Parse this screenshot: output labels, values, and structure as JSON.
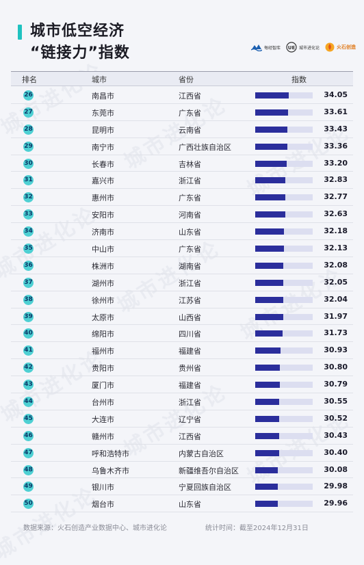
{
  "title": {
    "line1": "城市低空经济",
    "line2": "“链接力”指数"
  },
  "logos": [
    {
      "name": "wave-logo",
      "text": "每经智库"
    },
    {
      "name": "ue-logo",
      "text": "城市进化论"
    },
    {
      "name": "fire-logo",
      "text": "火石创造"
    }
  ],
  "watermark": "城市进化论",
  "header": {
    "rank": "排名",
    "city": "城市",
    "province": "省份",
    "index": "指数"
  },
  "colors": {
    "accent": "#1fc2c0",
    "bar": "#2b2e9c",
    "bar_track": "#dcdef0",
    "rank_badge": "#4ed0d3"
  },
  "chart_data": {
    "type": "table",
    "value_max": 34.05,
    "rows": [
      {
        "rank": "26",
        "city": "南昌市",
        "province": "江西省",
        "value": 34.05
      },
      {
        "rank": "27",
        "city": "东莞市",
        "province": "广东省",
        "value": 33.61
      },
      {
        "rank": "28",
        "city": "昆明市",
        "province": "云南省",
        "value": 33.43
      },
      {
        "rank": "29",
        "city": "南宁市",
        "province": "广西壮族自治区",
        "value": 33.36
      },
      {
        "rank": "30",
        "city": "长春市",
        "province": "吉林省",
        "value": 33.2
      },
      {
        "rank": "31",
        "city": "嘉兴市",
        "province": "浙江省",
        "value": 32.83
      },
      {
        "rank": "32",
        "city": "惠州市",
        "province": "广东省",
        "value": 32.77
      },
      {
        "rank": "33",
        "city": "安阳市",
        "province": "河南省",
        "value": 32.63
      },
      {
        "rank": "34",
        "city": "济南市",
        "province": "山东省",
        "value": 32.18
      },
      {
        "rank": "35",
        "city": "中山市",
        "province": "广东省",
        "value": 32.13
      },
      {
        "rank": "36",
        "city": "株洲市",
        "province": "湖南省",
        "value": 32.08
      },
      {
        "rank": "37",
        "city": "湖州市",
        "province": "浙江省",
        "value": 32.05
      },
      {
        "rank": "38",
        "city": "徐州市",
        "province": "江苏省",
        "value": 32.04
      },
      {
        "rank": "39",
        "city": "太原市",
        "province": "山西省",
        "value": 31.97
      },
      {
        "rank": "40",
        "city": "绵阳市",
        "province": "四川省",
        "value": 31.73
      },
      {
        "rank": "41",
        "city": "福州市",
        "province": "福建省",
        "value": 30.93
      },
      {
        "rank": "42",
        "city": "贵阳市",
        "province": "贵州省",
        "value": 30.8
      },
      {
        "rank": "43",
        "city": "厦门市",
        "province": "福建省",
        "value": 30.79
      },
      {
        "rank": "44",
        "city": "台州市",
        "province": "浙江省",
        "value": 30.55
      },
      {
        "rank": "45",
        "city": "大连市",
        "province": "辽宁省",
        "value": 30.52
      },
      {
        "rank": "46",
        "city": "赣州市",
        "province": "江西省",
        "value": 30.43
      },
      {
        "rank": "47",
        "city": "呼和浩特市",
        "province": "内蒙古自治区",
        "value": 30.4
      },
      {
        "rank": "48",
        "city": "乌鲁木齐市",
        "province": "新疆维吾尔自治区",
        "value": 30.08
      },
      {
        "rank": "49",
        "city": "银川市",
        "province": "宁夏回族自治区",
        "value": 29.98
      },
      {
        "rank": "50",
        "city": "烟台市",
        "province": "山东省",
        "value": 29.96
      }
    ]
  },
  "footer": {
    "source": "数据来源：火石创造产业数据中心、城市进化论",
    "time": "统计时间：截至2024年12月31日"
  }
}
